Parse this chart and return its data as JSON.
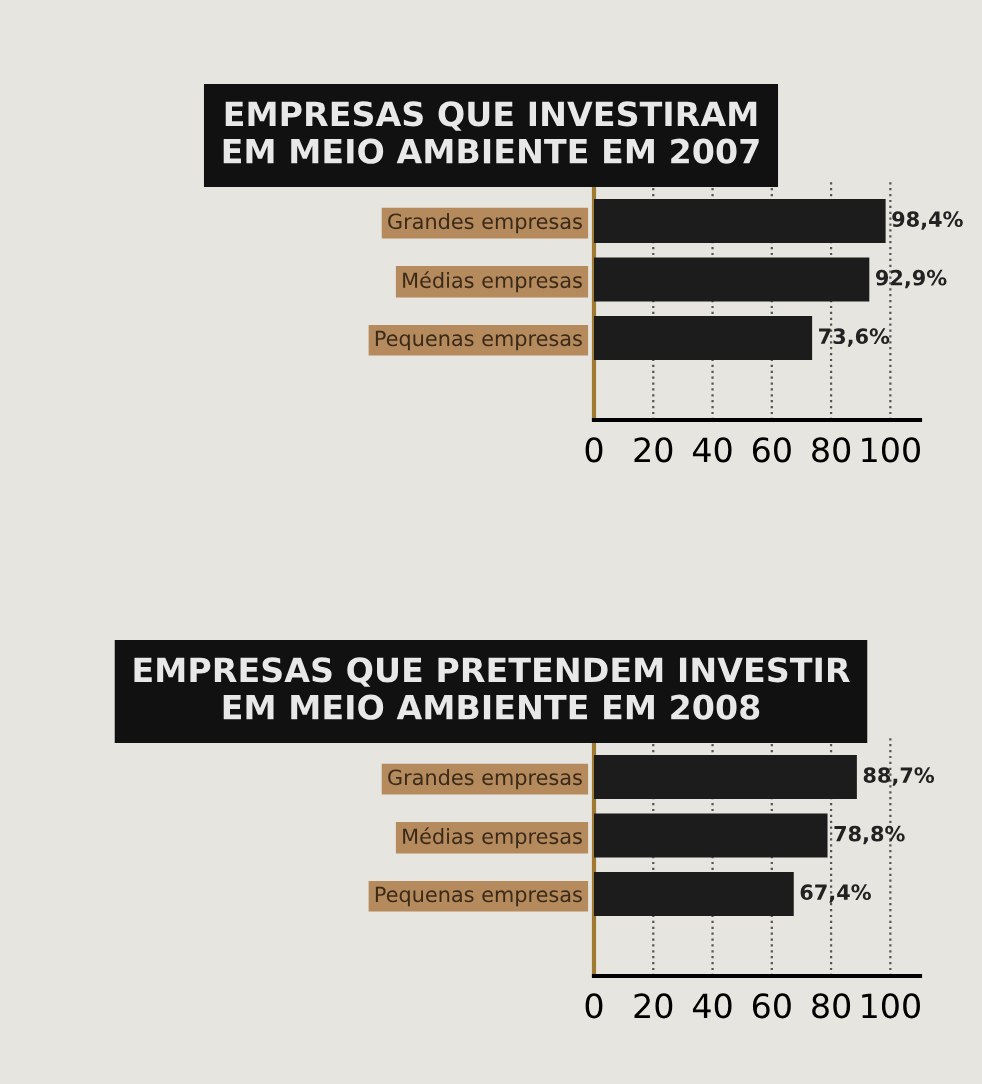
{
  "chart_data": [
    {
      "type": "bar",
      "orientation": "horizontal",
      "title": "EMPRESAS QUE INVESTIRAM\nEM MEIO AMBIENTE EM 2007",
      "categories": [
        "Grandes empresas",
        "Médias empresas",
        "Pequenas empresas"
      ],
      "values": [
        98.4,
        92.9,
        73.6
      ],
      "value_labels": [
        "98,4%",
        "92,9%",
        "73,6%"
      ],
      "color": "#1c1c1c",
      "xlim": [
        0,
        110
      ],
      "xticks": [
        0,
        20,
        40,
        60,
        80,
        100
      ],
      "grid": "x"
    },
    {
      "type": "bar",
      "orientation": "horizontal",
      "title": "EMPRESAS QUE PRETENDEM INVESTIR\nEM MEIO AMBIENTE EM 2008",
      "categories": [
        "Grandes empresas",
        "Médias empresas",
        "Pequenas empresas"
      ],
      "values": [
        88.7,
        78.8,
        67.4
      ],
      "value_labels": [
        "88,7%",
        "78,8%",
        "67,4%"
      ],
      "color": "#1c1c1c",
      "xlim": [
        0,
        110
      ],
      "xticks": [
        0,
        20,
        40,
        60,
        80,
        100
      ],
      "grid": "x"
    }
  ]
}
